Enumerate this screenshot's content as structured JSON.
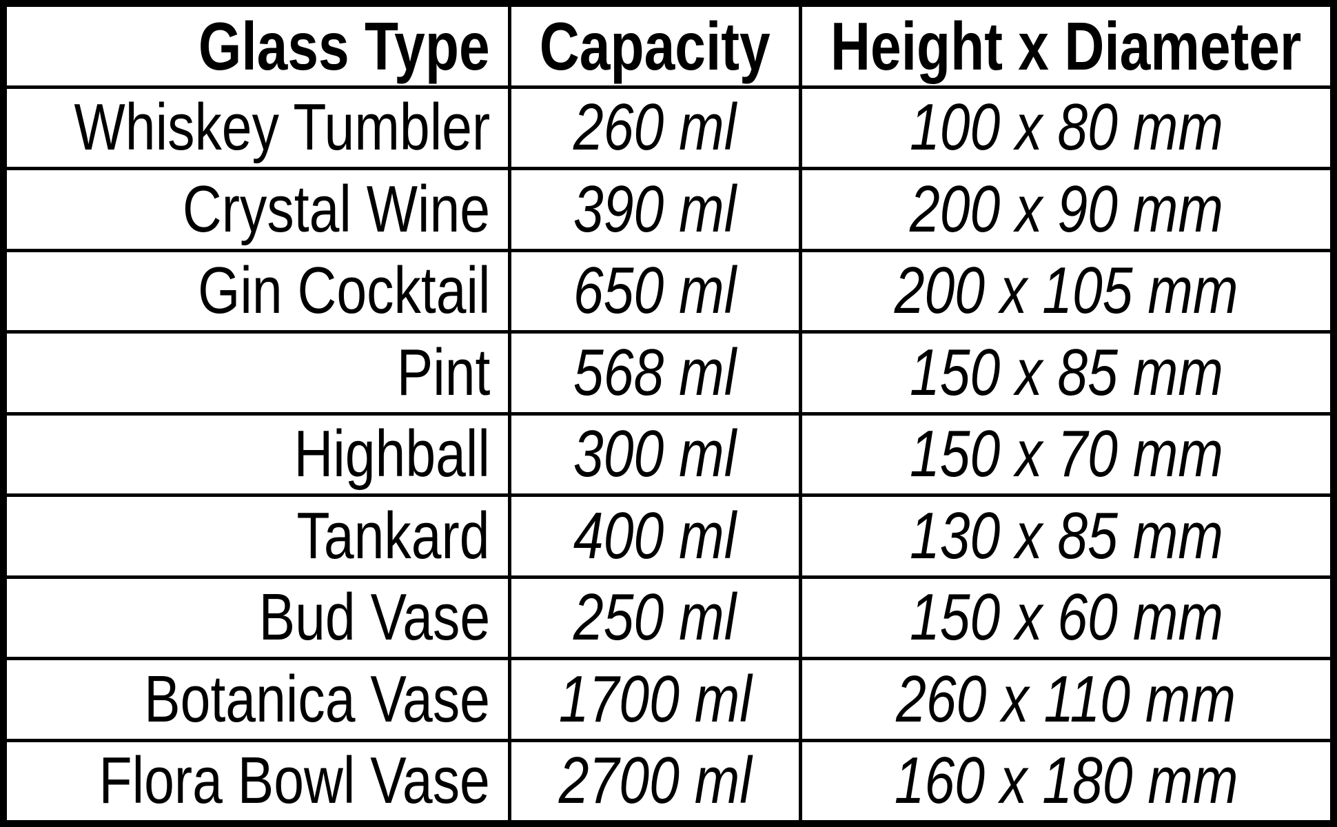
{
  "chart_data": {
    "type": "table",
    "columns": [
      "Glass Type",
      "Capacity",
      "Height x Diameter"
    ],
    "rows": [
      [
        "Whiskey Tumbler",
        "260 ml",
        "100 x 80 mm"
      ],
      [
        "Crystal Wine",
        "390 ml",
        "200 x 90 mm"
      ],
      [
        "Gin Cocktail",
        "650 ml",
        "200 x 105 mm"
      ],
      [
        "Pint",
        "568 ml",
        "150 x 85 mm"
      ],
      [
        "Highball",
        "300 ml",
        "150 x 70 mm"
      ],
      [
        "Tankard",
        "400 ml",
        "130 x 85 mm"
      ],
      [
        "Bud Vase",
        "250 ml",
        "150 x 60 mm"
      ],
      [
        "Botanica Vase",
        "1700 ml",
        "260 x 110 mm"
      ],
      [
        "Flora Bowl Vase",
        "2700 ml",
        "160 x 180 mm"
      ]
    ]
  },
  "table": {
    "columns": [
      {
        "label": "Glass Type"
      },
      {
        "label": "Capacity"
      },
      {
        "label": "Height x Diameter"
      }
    ],
    "rows": [
      {
        "glass_type": "Whiskey Tumbler",
        "capacity": "260 ml",
        "dimensions": "100 x 80 mm"
      },
      {
        "glass_type": "Crystal Wine",
        "capacity": "390 ml",
        "dimensions": "200 x 90 mm"
      },
      {
        "glass_type": "Gin Cocktail",
        "capacity": "650 ml",
        "dimensions": "200 x 105 mm"
      },
      {
        "glass_type": "Pint",
        "capacity": "568 ml",
        "dimensions": "150 x 85 mm"
      },
      {
        "glass_type": "Highball",
        "capacity": "300 ml",
        "dimensions": "150 x 70 mm"
      },
      {
        "glass_type": "Tankard",
        "capacity": "400 ml",
        "dimensions": "130 x 85 mm"
      },
      {
        "glass_type": "Bud Vase",
        "capacity": "250 ml",
        "dimensions": "150 x 60 mm"
      },
      {
        "glass_type": "Botanica Vase",
        "capacity": "1700 ml",
        "dimensions": "260 x 110 mm"
      },
      {
        "glass_type": "Flora Bowl Vase",
        "capacity": "2700 ml",
        "dimensions": "160 x 180 mm"
      }
    ]
  },
  "colors": {
    "border": "#000000",
    "background": "#ffffff",
    "text": "#000000"
  }
}
